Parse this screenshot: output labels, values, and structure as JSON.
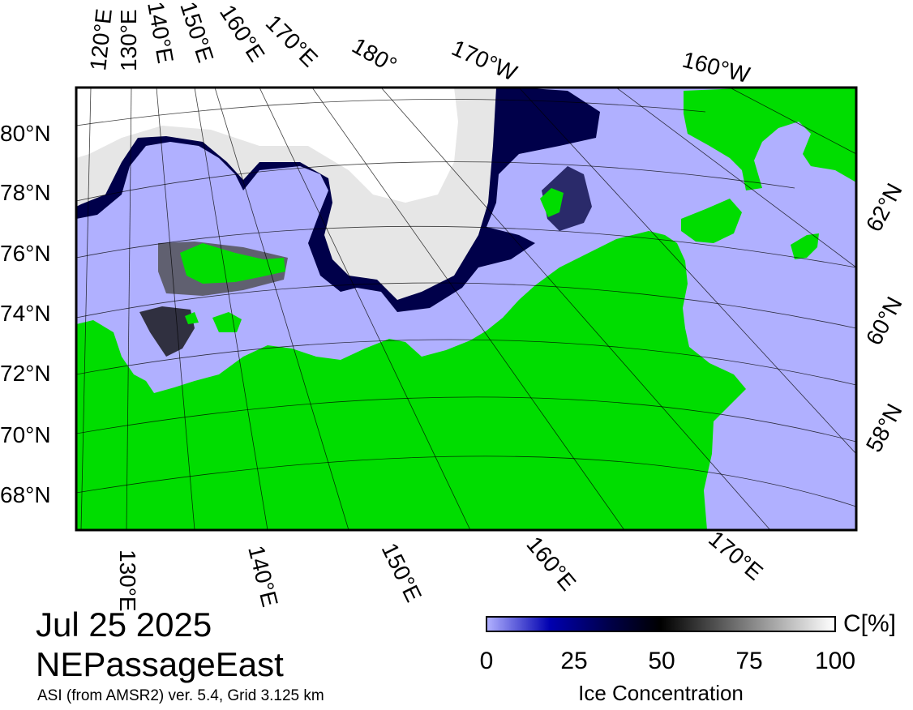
{
  "title": {
    "date": "Jul 25 2025",
    "region": "NEPassageEast",
    "source": "ASI (from AMSR2) ver. 5.4,  Grid 3.125 km"
  },
  "colors": {
    "land": "#00dd00",
    "open_water": "#b0b0ff",
    "ice_high": "#ffffff",
    "ice_low": "#00004a",
    "frame": "#000000"
  },
  "graticule": {
    "lat_labels_left": [
      "80°N",
      "78°N",
      "76°N",
      "74°N",
      "72°N",
      "70°N",
      "68°N"
    ],
    "lat_labels_right": [
      "62°N",
      "60°N",
      "58°N"
    ],
    "lon_labels_top": [
      "120°E",
      "130°E",
      "140°E",
      "150°E",
      "160°E",
      "170°E",
      "180°",
      "170°W",
      "160°W"
    ],
    "lon_labels_bottom": [
      "130°E",
      "140°E",
      "150°E",
      "160°E",
      "170°E"
    ]
  },
  "colorbar": {
    "ticks": [
      "0",
      "25",
      "50",
      "75",
      "100"
    ],
    "unit": "C[%]",
    "label": "Ice Concentration",
    "range": [
      0,
      100
    ]
  }
}
